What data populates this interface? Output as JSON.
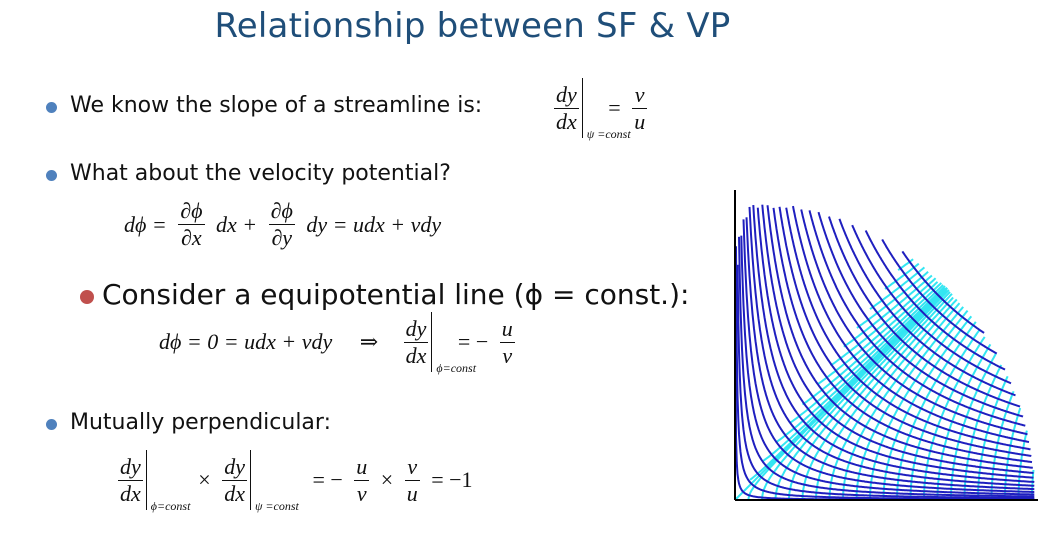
{
  "title": "Relationship between SF & VP",
  "bullets": {
    "b1": "We know the slope of a streamline is:",
    "b2": "What about the velocity potential?",
    "b3": "Consider a equipotential line (ϕ = const.):",
    "b4": "Mutually perpendicular:"
  },
  "eq": {
    "dy": "dy",
    "dx": "dx",
    "v": "v",
    "u": "u",
    "psi_const": "ψ =const",
    "phi_const": "ϕ=const",
    "eq2_lhs": "dϕ =",
    "dphi": "∂ϕ",
    "dx_part": "∂x",
    "dy_part": "∂y",
    "eq2_t1": "dx +",
    "eq2_t2": "dy = udx + vdy",
    "eq3_lhs": "dϕ = 0 = udx + vdy",
    "implies": "⇒",
    "eq4_result": "= −1"
  },
  "colors": {
    "title": "#1f4e79",
    "bullet_blue": "#4f81bd",
    "bullet_red": "#c0504d",
    "streamline": "#1f1fbf",
    "equipotential": "#33e6f2"
  },
  "figure": {
    "icon": "flow-net-corner-diagram"
  }
}
